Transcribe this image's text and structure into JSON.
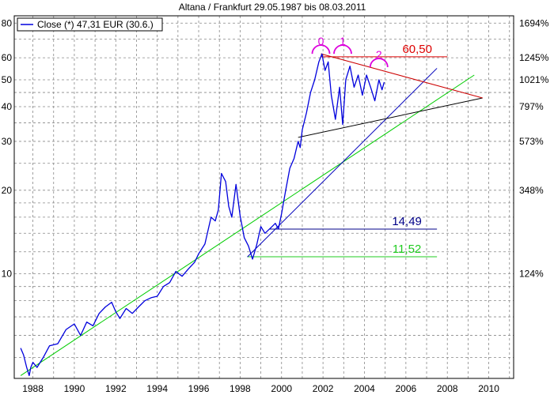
{
  "chart_data": {
    "type": "line",
    "title": "Altana / Frankfurt 29.05.1987 bis 08.03.2011",
    "y_scale": "log",
    "xlim": [
      1987.1,
      2011.2
    ],
    "ylim": [
      4.2,
      85
    ],
    "grid": true,
    "legend": {
      "position": "top-left",
      "label": "Close (*) 47,31 EUR (30.6.)"
    },
    "x_ticks": [
      {
        "value": 1988,
        "label": "1988"
      },
      {
        "value": 1990,
        "label": "1990"
      },
      {
        "value": 1992,
        "label": "1992"
      },
      {
        "value": 1994,
        "label": "1994"
      },
      {
        "value": 1996,
        "label": "1996"
      },
      {
        "value": 1998,
        "label": "1998"
      },
      {
        "value": 2000,
        "label": "2000"
      },
      {
        "value": 2002,
        "label": "2002"
      },
      {
        "value": 2004,
        "label": "2004"
      },
      {
        "value": 2006,
        "label": "2006"
      },
      {
        "value": 2008,
        "label": "2008"
      },
      {
        "value": 2010,
        "label": "2010"
      }
    ],
    "y_ticks_left": [
      {
        "value": 10,
        "label": "10"
      },
      {
        "value": 20,
        "label": "20"
      },
      {
        "value": 30,
        "label": "30"
      },
      {
        "value": 40,
        "label": "40"
      },
      {
        "value": 50,
        "label": "50"
      },
      {
        "value": 60,
        "label": "60"
      },
      {
        "value": 80,
        "label": "80"
      }
    ],
    "y_ticks_right": [
      {
        "value": 10,
        "label": "124%"
      },
      {
        "value": 20,
        "label": "348%"
      },
      {
        "value": 30,
        "label": "573%"
      },
      {
        "value": 40,
        "label": "797%"
      },
      {
        "value": 50,
        "label": "1021%"
      },
      {
        "value": 60,
        "label": "1245%"
      },
      {
        "value": 80,
        "label": "1694%"
      }
    ],
    "series": [
      {
        "name": "Close (*) 47,31 EUR (30.6.)",
        "color": "#0000dd",
        "x": [
          1987.41,
          1987.55,
          1987.7,
          1987.82,
          1987.9,
          1988.0,
          1988.2,
          1988.5,
          1988.8,
          1989.2,
          1989.6,
          1990.0,
          1990.3,
          1990.6,
          1990.9,
          1991.2,
          1991.5,
          1991.8,
          1992.0,
          1992.2,
          1992.5,
          1992.8,
          1993.1,
          1993.4,
          1993.7,
          1994.0,
          1994.3,
          1994.6,
          1994.9,
          1995.2,
          1995.5,
          1995.8,
          1996.0,
          1996.3,
          1996.6,
          1996.8,
          1996.95,
          1997.1,
          1997.3,
          1997.45,
          1997.6,
          1997.8,
          1998.0,
          1998.2,
          1998.4,
          1998.6,
          1998.8,
          1999.0,
          1999.2,
          1999.5,
          1999.7,
          1999.85,
          2000.0,
          2000.2,
          2000.4,
          2000.6,
          2000.8,
          2000.9,
          2001.0,
          2001.2,
          2001.4,
          2001.6,
          2001.8,
          2001.95,
          2002.1,
          2002.25,
          2002.4,
          2002.6,
          2002.8,
          2002.95,
          2003.1,
          2003.3,
          2003.5,
          2003.7,
          2003.9,
          2004.1,
          2004.3,
          2004.5,
          2004.7,
          2004.85,
          2004.95
        ],
        "y": [
          5.4,
          5.1,
          4.6,
          4.3,
          4.6,
          4.8,
          4.6,
          5.0,
          5.5,
          5.6,
          6.3,
          6.6,
          6.0,
          6.7,
          6.5,
          7.2,
          7.6,
          7.9,
          7.3,
          6.9,
          7.5,
          7.2,
          7.6,
          8.0,
          8.2,
          8.3,
          9.0,
          9.3,
          10.2,
          9.8,
          10.4,
          11.0,
          11.8,
          12.8,
          16.0,
          15.5,
          17.0,
          23.0,
          21.5,
          17.5,
          16.0,
          21.0,
          16.2,
          13.5,
          12.6,
          11.3,
          12.7,
          14.8,
          14.0,
          14.7,
          15.2,
          14.5,
          16.5,
          20.0,
          24.0,
          26.0,
          30.0,
          28.5,
          33.0,
          38.0,
          45.0,
          50.0,
          58.0,
          62.0,
          54.0,
          58.0,
          44.0,
          36.0,
          47.0,
          34.5,
          50.0,
          56.0,
          47.0,
          52.0,
          44.0,
          52.0,
          47.0,
          42.0,
          50.0,
          46.0,
          49.0
        ]
      }
    ],
    "trendlines": [
      {
        "color": "#00cc00",
        "x": [
          1987.41,
          2009.3
        ],
        "y": [
          4.3,
          52.0
        ]
      },
      {
        "color": "#0000bb",
        "x": [
          1998.35,
          2007.5
        ],
        "y": [
          11.5,
          55.0
        ]
      },
      {
        "color": "#000000",
        "x": [
          2000.8,
          2009.7
        ],
        "y": [
          31.0,
          43.0
        ]
      },
      {
        "color": "#cc0000",
        "x": [
          2001.9,
          2009.7
        ],
        "y": [
          62.0,
          43.0
        ]
      }
    ],
    "levels": [
      {
        "value": 60.5,
        "label": "60,50",
        "color": "#dd0000",
        "x_start": 2001.9,
        "x_end": 2008.0
      },
      {
        "value": 14.49,
        "label": "14,49",
        "color": "#000088",
        "x_start": 1999.4,
        "x_end": 2007.5
      },
      {
        "value": 11.52,
        "label": "11,52",
        "color": "#22cc22",
        "x_start": 1998.35,
        "x_end": 2007.5
      }
    ],
    "annotations": [
      {
        "label": "0",
        "x": 2001.9,
        "y": 62.0,
        "color": "#dd00dd"
      },
      {
        "label": "1",
        "x": 2002.95,
        "y": 62.0,
        "color": "#dd00dd"
      },
      {
        "label": "2",
        "x": 2004.7,
        "y": 55.5,
        "color": "#dd00dd"
      }
    ]
  }
}
